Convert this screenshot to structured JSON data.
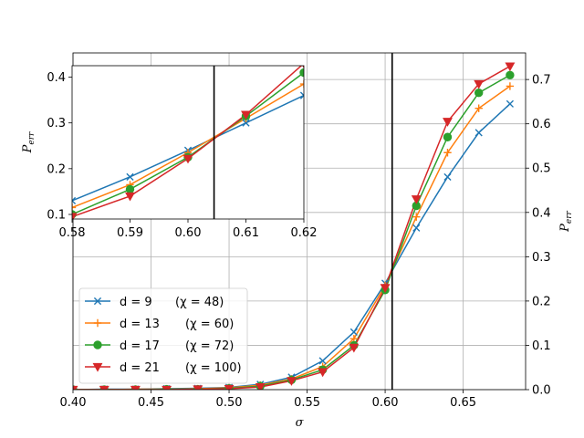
{
  "chart_data": [
    {
      "type": "line",
      "title": "",
      "xlabel": "σ",
      "ylabel": "P_err",
      "ylabel_position": "right",
      "xlim": [
        0.4,
        0.69
      ],
      "ylim": [
        0.0,
        0.76
      ],
      "xticks": [
        "0.40",
        "0.45",
        "0.50",
        "0.55",
        "0.60",
        "0.65"
      ],
      "yticks": [
        "0.0",
        "0.1",
        "0.2",
        "0.3",
        "0.4",
        "0.5",
        "0.6",
        "0.7"
      ],
      "grid": true,
      "vline": 0.6045,
      "legend_position": "lower-left",
      "x": [
        0.4,
        0.42,
        0.44,
        0.46,
        0.48,
        0.5,
        0.52,
        0.54,
        0.56,
        0.58,
        0.6,
        0.62,
        0.64,
        0.66,
        0.68
      ],
      "series": [
        {
          "name": "d = 9      (χ = 48)",
          "label_main": "d = 9",
          "label_chi": "(χ = 48)",
          "color": "#1f77b4",
          "marker": "x",
          "values": [
            0.0,
            0.001,
            0.001,
            0.002,
            0.003,
            0.005,
            0.012,
            0.028,
            0.065,
            0.13,
            0.24,
            0.365,
            0.48,
            0.58,
            0.645
          ]
        },
        {
          "name": "d = 13      (χ = 60)",
          "label_main": "d = 13",
          "label_chi": "(χ = 60)",
          "color": "#ff7f0e",
          "marker": "+",
          "values": [
            0.0,
            0.0,
            0.001,
            0.001,
            0.002,
            0.004,
            0.01,
            0.024,
            0.052,
            0.115,
            0.235,
            0.39,
            0.535,
            0.635,
            0.685
          ]
        },
        {
          "name": "d = 17      (χ = 72)",
          "label_main": "d = 17",
          "label_chi": "(χ = 72)",
          "color": "#2ca02c",
          "marker": "o",
          "values": [
            0.0,
            0.0,
            0.0,
            0.001,
            0.001,
            0.003,
            0.008,
            0.022,
            0.045,
            0.1,
            0.225,
            0.415,
            0.57,
            0.67,
            0.71
          ]
        },
        {
          "name": "d = 21      (χ = 100)",
          "label_main": "d = 21",
          "label_chi": "(χ = 100)",
          "color": "#d62728",
          "marker": "v",
          "values": [
            0.0,
            0.0,
            0.0,
            0.0,
            0.001,
            0.002,
            0.006,
            0.02,
            0.04,
            0.095,
            0.23,
            0.43,
            0.605,
            0.69,
            0.73
          ]
        }
      ]
    },
    {
      "type": "line",
      "title": "",
      "xlabel": "",
      "ylabel": "P_err",
      "ylabel_position": "left",
      "xlim": [
        0.58,
        0.62
      ],
      "ylim": [
        0.09,
        0.425
      ],
      "xticks": [
        "0.58",
        "0.59",
        "0.60",
        "0.61",
        "0.62"
      ],
      "yticks": [
        "0.1",
        "0.2",
        "0.3",
        "0.4"
      ],
      "grid": false,
      "vline": 0.6045,
      "x": [
        0.58,
        0.59,
        0.6,
        0.61,
        0.62
      ],
      "series": [
        {
          "name": "d = 9      (χ = 48)",
          "color": "#1f77b4",
          "marker": "x",
          "values": [
            0.13,
            0.182,
            0.24,
            0.3,
            0.36
          ]
        },
        {
          "name": "d = 13      (χ = 60)",
          "color": "#ff7f0e",
          "marker": "+",
          "values": [
            0.115,
            0.165,
            0.235,
            0.31,
            0.385
          ]
        },
        {
          "name": "d = 17      (χ = 72)",
          "color": "#2ca02c",
          "marker": "o",
          "values": [
            0.1,
            0.155,
            0.225,
            0.315,
            0.41
          ]
        },
        {
          "name": "d = 21      (χ = 100)",
          "color": "#d62728",
          "marker": "v",
          "values": [
            0.095,
            0.14,
            0.222,
            0.318,
            0.43
          ]
        }
      ]
    }
  ]
}
